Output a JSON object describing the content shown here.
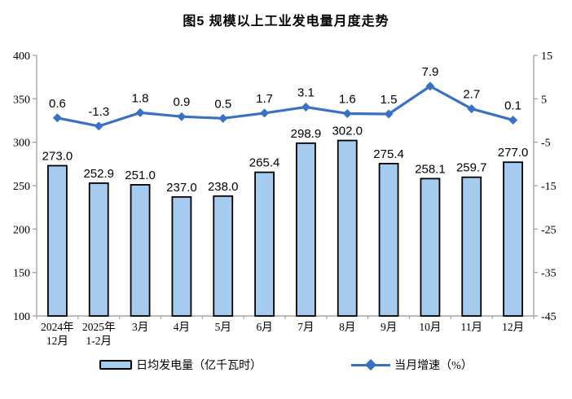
{
  "title": "图5 规模以上工业发电量月度走势",
  "chart_data": {
    "type": "bar+line combo",
    "title": "图5 规模以上工业发电量月度走势",
    "categories": [
      "2024年\n12月",
      "2025年\n1-2月",
      "3月",
      "4月",
      "5月",
      "6月",
      "7月",
      "8月",
      "9月",
      "10月",
      "11月",
      "12月"
    ],
    "series": [
      {
        "name": "日均发电量（亿千瓦时）",
        "type": "bar",
        "axis": "left",
        "values": [
          273.0,
          252.9,
          251.0,
          237.0,
          238.0,
          265.4,
          298.9,
          302.0,
          275.4,
          258.1,
          259.7,
          277.0
        ],
        "fill_color": "#A5CBEF",
        "border_color": "#000000"
      },
      {
        "name": "当月增速（%）",
        "type": "line",
        "axis": "right",
        "values": [
          0.6,
          -1.3,
          1.8,
          0.9,
          0.5,
          1.7,
          3.1,
          1.6,
          1.5,
          7.9,
          2.7,
          0.1
        ],
        "color": "#3A72C2",
        "marker": "diamond"
      }
    ],
    "left_axis": {
      "min": 100,
      "max": 400,
      "step": 50,
      "tick_labels": [
        "400",
        "350",
        "300",
        "250",
        "200",
        "150",
        "100"
      ]
    },
    "right_axis": {
      "min": -45,
      "max": 15,
      "step": 10,
      "tick_labels": [
        "15",
        "5",
        "-5",
        "-15",
        "-25",
        "-35",
        "-45"
      ]
    },
    "grid": false,
    "data_labels": true,
    "legend_position": "bottom",
    "axis_color": "#A6A6A6",
    "text_color": "#000000"
  },
  "legend": {
    "bar_label": "日均发电量（亿千瓦时）",
    "line_label": "当月增速（%）"
  }
}
